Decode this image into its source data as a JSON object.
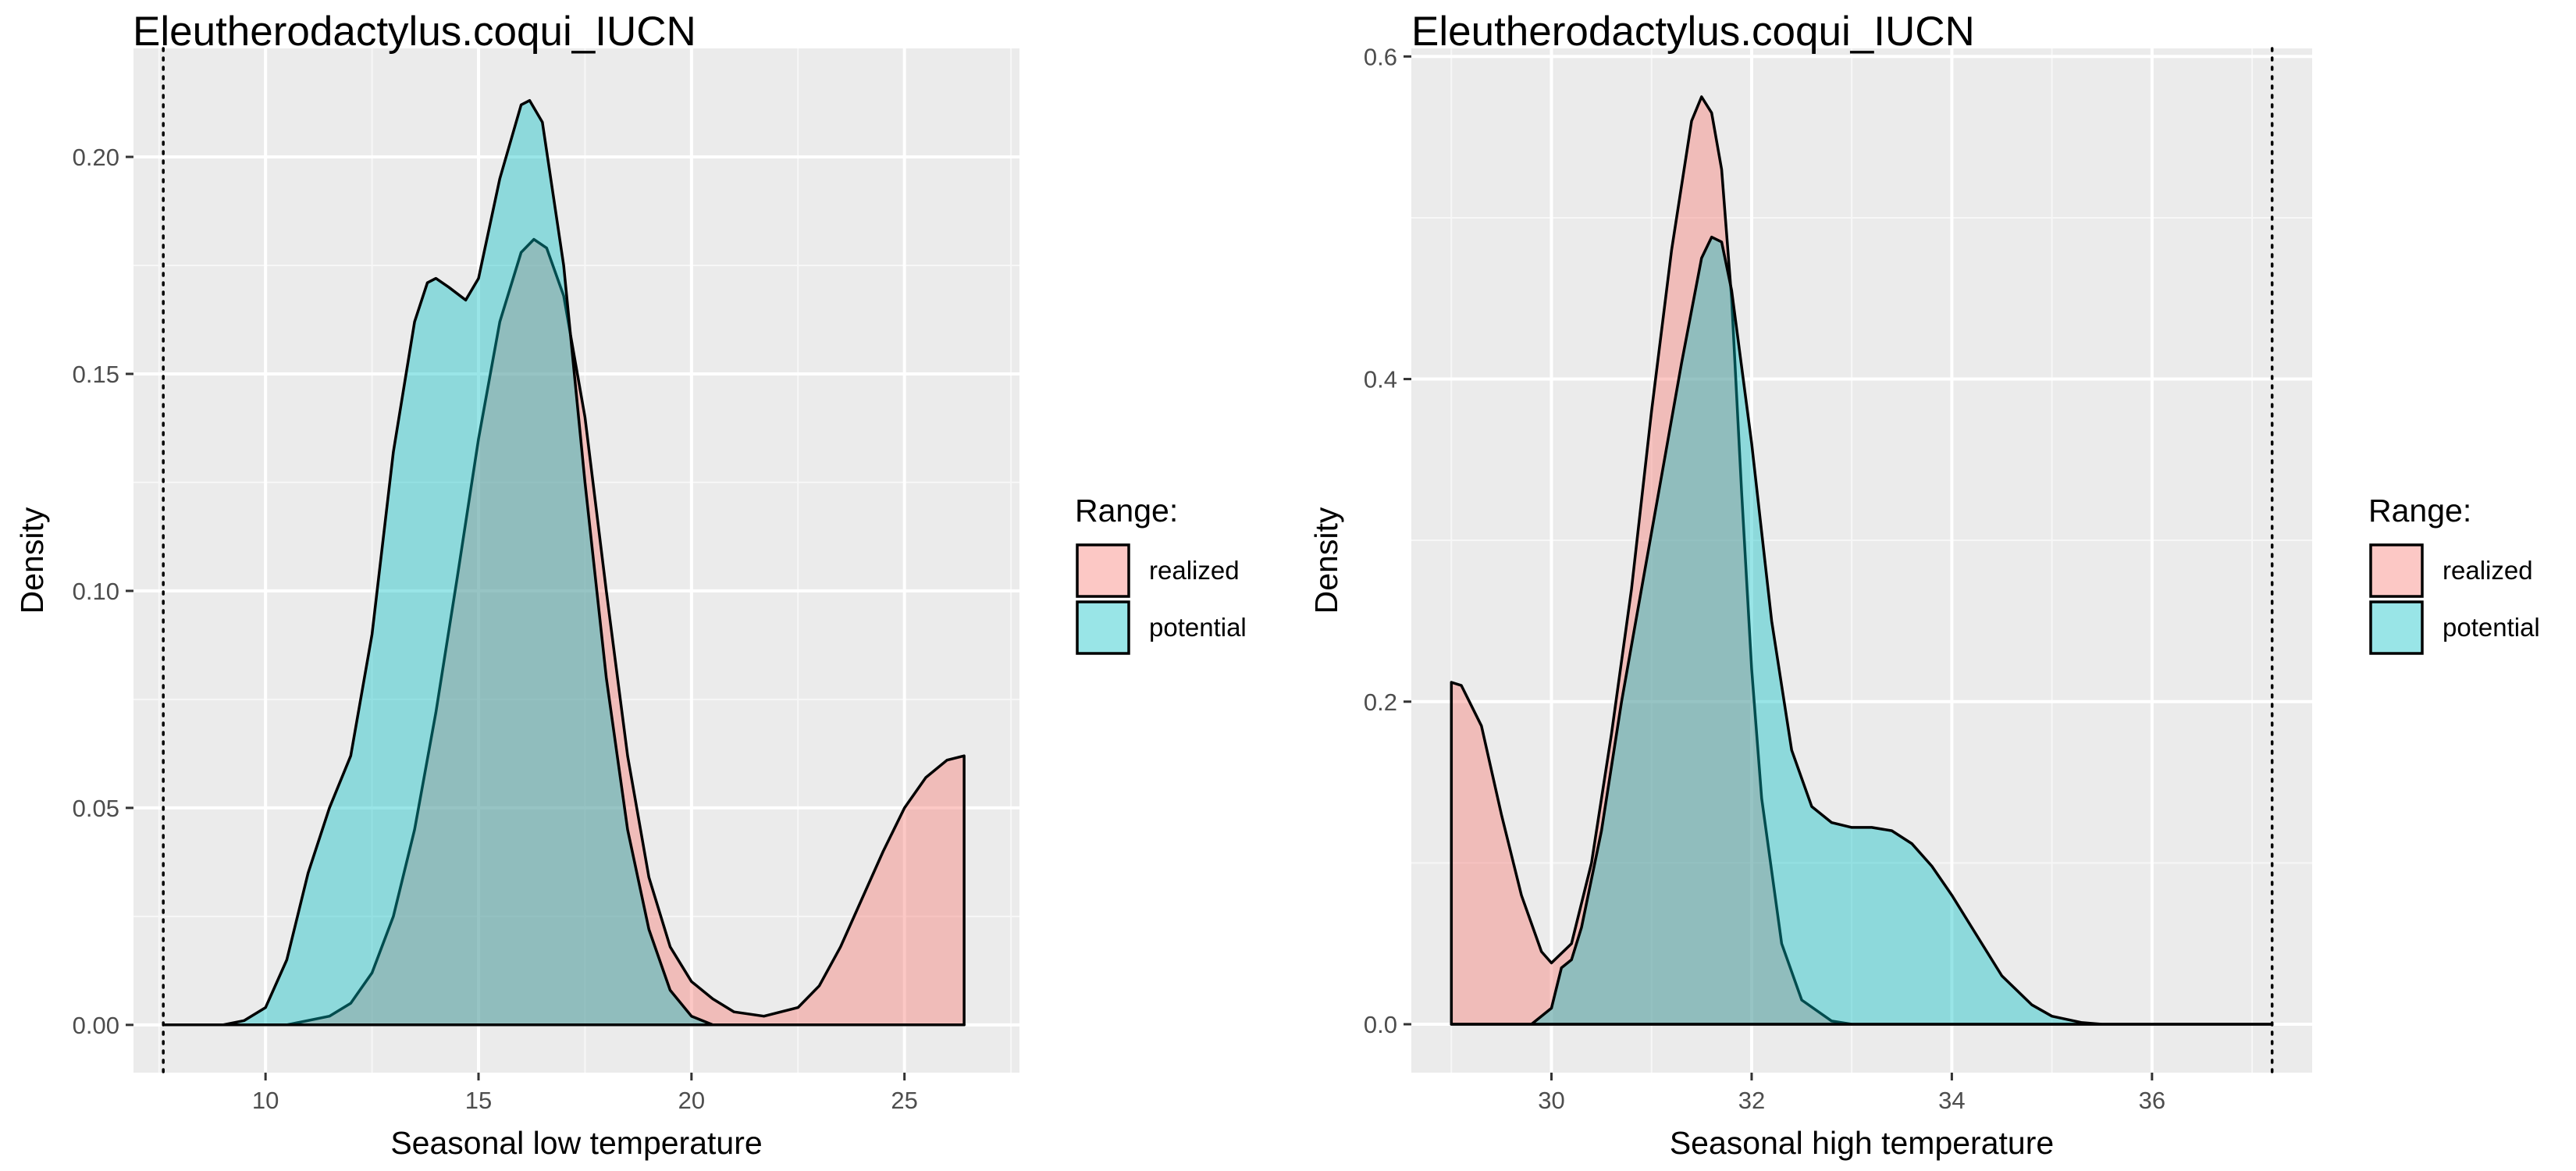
{
  "legend_title": "Range:",
  "chart_data": [
    {
      "type": "area",
      "title": "Eleutherodactylus.coqui_IUCN",
      "xlabel": "Seasonal low temperature",
      "ylabel": "Density",
      "xlim": [
        6.9,
        27.7
      ],
      "ylim": [
        -0.011,
        0.225
      ],
      "x_ticks": [
        10,
        15,
        20,
        25
      ],
      "x_tick_labels": [
        "10",
        "15",
        "20",
        "25"
      ],
      "y_ticks": [
        0.0,
        0.05,
        0.1,
        0.15,
        0.2
      ],
      "y_tick_labels": [
        "0.00",
        "0.05",
        "0.10",
        "0.15",
        "0.20"
      ],
      "grid": true,
      "legend_position": "right",
      "reference_line": {
        "x": 7.6,
        "style": "dotted"
      },
      "series": [
        {
          "name": "realized",
          "color": "#F8766D",
          "points": [
            [
              9.0,
              0.0
            ],
            [
              10.5,
              0.0
            ],
            [
              11.5,
              0.002
            ],
            [
              12.0,
              0.005
            ],
            [
              12.5,
              0.012
            ],
            [
              13.0,
              0.025
            ],
            [
              13.5,
              0.045
            ],
            [
              14.0,
              0.072
            ],
            [
              14.5,
              0.103
            ],
            [
              15.0,
              0.135
            ],
            [
              15.5,
              0.162
            ],
            [
              16.0,
              0.178
            ],
            [
              16.3,
              0.181
            ],
            [
              16.6,
              0.179
            ],
            [
              17.0,
              0.168
            ],
            [
              17.5,
              0.14
            ],
            [
              18.0,
              0.1
            ],
            [
              18.5,
              0.062
            ],
            [
              19.0,
              0.034
            ],
            [
              19.5,
              0.018
            ],
            [
              20.0,
              0.01
            ],
            [
              20.5,
              0.006
            ],
            [
              21.0,
              0.003
            ],
            [
              21.7,
              0.002
            ],
            [
              22.5,
              0.004
            ],
            [
              23.0,
              0.009
            ],
            [
              23.5,
              0.018
            ],
            [
              24.0,
              0.029
            ],
            [
              24.5,
              0.04
            ],
            [
              25.0,
              0.05
            ],
            [
              25.5,
              0.057
            ],
            [
              26.0,
              0.061
            ],
            [
              26.4,
              0.062
            ],
            [
              26.4,
              0.0
            ]
          ]
        },
        {
          "name": "potential",
          "color": "#00BFC4",
          "points": [
            [
              7.6,
              0.0
            ],
            [
              9.0,
              0.0
            ],
            [
              9.5,
              0.001
            ],
            [
              10.0,
              0.004
            ],
            [
              10.5,
              0.015
            ],
            [
              11.0,
              0.035
            ],
            [
              11.5,
              0.05
            ],
            [
              12.0,
              0.062
            ],
            [
              12.5,
              0.09
            ],
            [
              13.0,
              0.132
            ],
            [
              13.5,
              0.162
            ],
            [
              13.8,
              0.171
            ],
            [
              14.0,
              0.172
            ],
            [
              14.3,
              0.17
            ],
            [
              14.7,
              0.167
            ],
            [
              15.0,
              0.172
            ],
            [
              15.5,
              0.195
            ],
            [
              16.0,
              0.212
            ],
            [
              16.2,
              0.213
            ],
            [
              16.5,
              0.208
            ],
            [
              17.0,
              0.175
            ],
            [
              17.5,
              0.125
            ],
            [
              18.0,
              0.08
            ],
            [
              18.5,
              0.045
            ],
            [
              19.0,
              0.022
            ],
            [
              19.5,
              0.008
            ],
            [
              20.0,
              0.002
            ],
            [
              20.5,
              0.0
            ],
            [
              22.0,
              0.0
            ],
            [
              26.4,
              0.0
            ]
          ]
        }
      ]
    },
    {
      "type": "area",
      "title": "Eleutherodactylus.coqui_IUCN",
      "xlabel": "Seasonal high temperature",
      "ylabel": "Density",
      "xlim": [
        28.6,
        37.6
      ],
      "ylim": [
        -0.03,
        0.605
      ],
      "x_ticks": [
        30,
        32,
        34,
        36
      ],
      "x_tick_labels": [
        "30",
        "32",
        "34",
        "36"
      ],
      "y_ticks": [
        0.0,
        0.2,
        0.4,
        0.6
      ],
      "y_tick_labels": [
        "0.0",
        "0.2",
        "0.4",
        "0.6"
      ],
      "grid": true,
      "legend_position": "right",
      "reference_line": {
        "x": 37.2,
        "style": "dotted"
      },
      "series": [
        {
          "name": "realized",
          "color": "#F8766D",
          "points": [
            [
              29.0,
              0.0
            ],
            [
              29.0,
              0.212
            ],
            [
              29.1,
              0.21
            ],
            [
              29.3,
              0.185
            ],
            [
              29.5,
              0.13
            ],
            [
              29.7,
              0.08
            ],
            [
              29.9,
              0.045
            ],
            [
              30.0,
              0.038
            ],
            [
              30.2,
              0.05
            ],
            [
              30.4,
              0.1
            ],
            [
              30.6,
              0.18
            ],
            [
              30.8,
              0.27
            ],
            [
              31.0,
              0.38
            ],
            [
              31.2,
              0.48
            ],
            [
              31.4,
              0.56
            ],
            [
              31.5,
              0.575
            ],
            [
              31.6,
              0.565
            ],
            [
              31.7,
              0.53
            ],
            [
              31.8,
              0.45
            ],
            [
              31.9,
              0.33
            ],
            [
              32.0,
              0.22
            ],
            [
              32.1,
              0.14
            ],
            [
              32.3,
              0.05
            ],
            [
              32.5,
              0.015
            ],
            [
              32.8,
              0.002
            ],
            [
              33.0,
              0.0
            ],
            [
              37.2,
              0.0
            ]
          ]
        },
        {
          "name": "potential",
          "color": "#00BFC4",
          "points": [
            [
              29.0,
              0.0
            ],
            [
              29.8,
              0.0
            ],
            [
              30.0,
              0.01
            ],
            [
              30.1,
              0.035
            ],
            [
              30.2,
              0.04
            ],
            [
              30.3,
              0.06
            ],
            [
              30.5,
              0.12
            ],
            [
              30.7,
              0.2
            ],
            [
              30.9,
              0.27
            ],
            [
              31.1,
              0.34
            ],
            [
              31.3,
              0.41
            ],
            [
              31.5,
              0.475
            ],
            [
              31.6,
              0.488
            ],
            [
              31.7,
              0.485
            ],
            [
              31.8,
              0.455
            ],
            [
              32.0,
              0.36
            ],
            [
              32.2,
              0.25
            ],
            [
              32.4,
              0.17
            ],
            [
              32.6,
              0.135
            ],
            [
              32.8,
              0.125
            ],
            [
              33.0,
              0.122
            ],
            [
              33.2,
              0.122
            ],
            [
              33.4,
              0.12
            ],
            [
              33.6,
              0.112
            ],
            [
              33.8,
              0.098
            ],
            [
              34.0,
              0.08
            ],
            [
              34.2,
              0.06
            ],
            [
              34.5,
              0.03
            ],
            [
              34.8,
              0.012
            ],
            [
              35.0,
              0.005
            ],
            [
              35.3,
              0.001
            ],
            [
              35.5,
              0.0
            ],
            [
              37.2,
              0.0
            ]
          ]
        }
      ]
    }
  ]
}
